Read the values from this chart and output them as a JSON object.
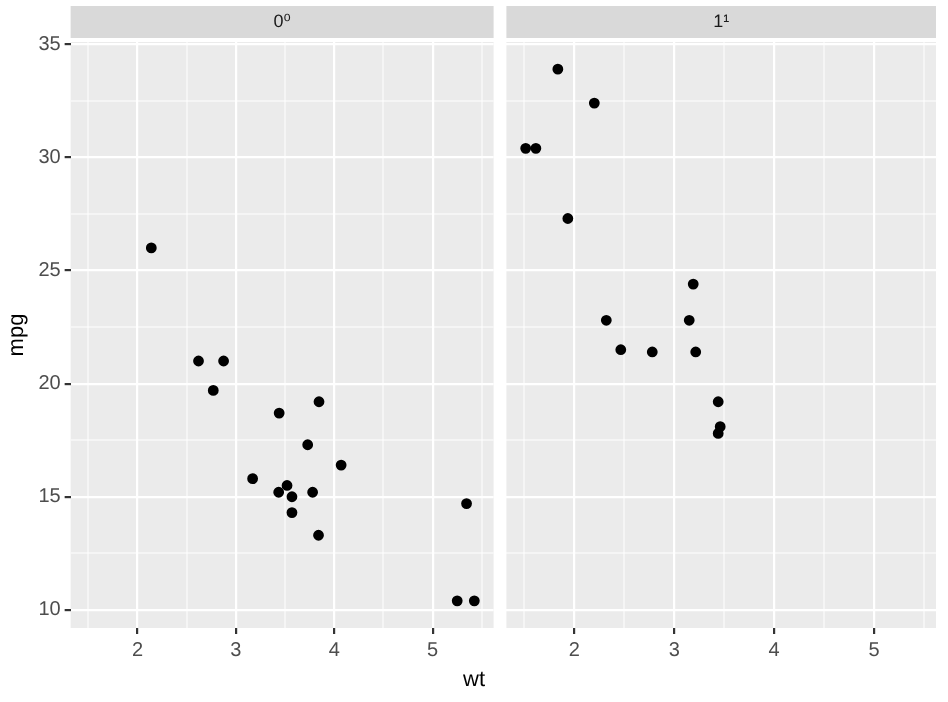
{
  "chart_data": [
    {
      "type": "scatter",
      "title": "0⁰",
      "xlabel": "wt",
      "ylabel": "mpg",
      "color": "#000000",
      "marker": "circle",
      "grid": true,
      "legend": false,
      "x": [
        2.62,
        2.875,
        3.44,
        3.57,
        4.07,
        3.73,
        3.78,
        5.25,
        5.424,
        5.345,
        3.52,
        3.435,
        3.84,
        3.845,
        2.14,
        3.17,
        2.77,
        3.57
      ],
      "values": [
        21,
        21,
        18.7,
        14.3,
        16.4,
        17.3,
        15.2,
        10.4,
        10.4,
        14.7,
        15.5,
        15.2,
        13.3,
        19.2,
        26,
        15.8,
        19.7,
        15
      ],
      "xlim": [
        1.32,
        5.62
      ],
      "ylim": [
        9.2,
        35.1
      ],
      "xticks": [
        {
          "value": 1.5,
          "label": null
        },
        2,
        {
          "value": 2.5,
          "label": null
        },
        3,
        {
          "value": 3.5,
          "label": null
        },
        4,
        {
          "value": 4.5,
          "label": null
        },
        5,
        {
          "value": 5.5,
          "label": null
        }
      ],
      "yticks": [
        10,
        {
          "value": 12.5,
          "label": null
        },
        15,
        {
          "value": 17.5,
          "label": null
        },
        20,
        {
          "value": 22.5,
          "label": null
        },
        25,
        {
          "value": 27.5,
          "label": null
        },
        30,
        {
          "value": 32.5,
          "label": null
        },
        35
      ]
    },
    {
      "type": "scatter",
      "title": "1¹",
      "color": "#000000",
      "marker": "circle",
      "grid": true,
      "legend": false,
      "tick_labels": "x",
      "x": [
        2.32,
        3.215,
        3.46,
        3.19,
        3.15,
        3.44,
        3.44,
        2.2,
        1.615,
        1.835,
        2.465,
        1.935,
        1.513,
        2.78
      ],
      "values": [
        22.8,
        21.4,
        18.1,
        24.4,
        22.8,
        19.2,
        17.8,
        32.4,
        30.4,
        33.9,
        21.5,
        27.3,
        30.4,
        21.4
      ],
      "xlim": [
        1.32,
        5.62
      ],
      "ylim": [
        9.2,
        35.1
      ],
      "xticks": [
        {
          "value": 1.5,
          "label": null
        },
        2,
        {
          "value": 2.5,
          "label": null
        },
        3,
        {
          "value": 3.5,
          "label": null
        },
        4,
        {
          "value": 4.5,
          "label": null
        },
        5,
        {
          "value": 5.5,
          "label": null
        }
      ],
      "yticks": [
        10,
        {
          "value": 12.5,
          "label": null
        },
        15,
        {
          "value": 17.5,
          "label": null
        },
        20,
        {
          "value": 22.5,
          "label": null
        },
        25,
        {
          "value": 27.5,
          "label": null
        },
        30,
        {
          "value": 32.5,
          "label": null
        },
        35
      ]
    }
  ]
}
